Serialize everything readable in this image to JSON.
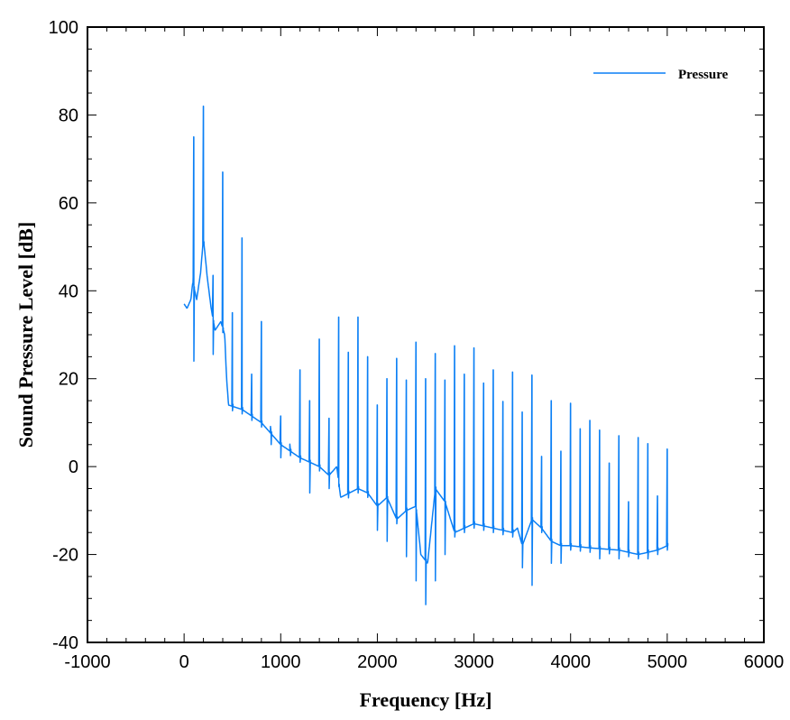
{
  "chart_data": {
    "type": "line",
    "title": "",
    "xlabel": "Frequency [Hz]",
    "ylabel": "Sound Pressure Level [dB]",
    "xlim": [
      -1000,
      6000
    ],
    "ylim": [
      -40,
      100
    ],
    "xticks": [
      -1000,
      0,
      1000,
      2000,
      3000,
      4000,
      5000,
      6000
    ],
    "yticks": [
      -40,
      -20,
      0,
      20,
      40,
      60,
      80,
      100
    ],
    "grid": false,
    "legend": {
      "position": "top-right",
      "entries": [
        "Pressure"
      ]
    },
    "color": "#0a7ff5",
    "series": [
      {
        "name": "Pressure",
        "baseline": [
          [
            0,
            37
          ],
          [
            30,
            36
          ],
          [
            70,
            38
          ],
          [
            90,
            42
          ],
          [
            130,
            38
          ],
          [
            170,
            44
          ],
          [
            200,
            52
          ],
          [
            240,
            43
          ],
          [
            280,
            36
          ],
          [
            320,
            31
          ],
          [
            380,
            33
          ],
          [
            420,
            30
          ],
          [
            440,
            20
          ],
          [
            460,
            14
          ],
          [
            600,
            13
          ],
          [
            800,
            10
          ],
          [
            1000,
            5
          ],
          [
            1200,
            2
          ],
          [
            1400,
            0
          ],
          [
            1500,
            -2
          ],
          [
            1580,
            0
          ],
          [
            1620,
            -7
          ],
          [
            1800,
            -5
          ],
          [
            1900,
            -6
          ],
          [
            2000,
            -9
          ],
          [
            2100,
            -7
          ],
          [
            2200,
            -12
          ],
          [
            2300,
            -10
          ],
          [
            2400,
            -9
          ],
          [
            2450,
            -20
          ],
          [
            2520,
            -22
          ],
          [
            2600,
            -5
          ],
          [
            2700,
            -8
          ],
          [
            2800,
            -15
          ],
          [
            3000,
            -13
          ],
          [
            3200,
            -14
          ],
          [
            3400,
            -15
          ],
          [
            3450,
            -14
          ],
          [
            3500,
            -18
          ],
          [
            3600,
            -12
          ],
          [
            3700,
            -14
          ],
          [
            3800,
            -17
          ],
          [
            3900,
            -18
          ],
          [
            4000,
            -18
          ],
          [
            4200,
            -18.5
          ],
          [
            4500,
            -19
          ],
          [
            4700,
            -20
          ],
          [
            4900,
            -19
          ],
          [
            5000,
            -18
          ]
        ],
        "spikes": [
          [
            100,
            75,
            24
          ],
          [
            200,
            82,
            null
          ],
          [
            300,
            43.5,
            25.5
          ],
          [
            400,
            67,
            null
          ],
          [
            500,
            35,
            null
          ],
          [
            600,
            52,
            null
          ],
          [
            700,
            21,
            null
          ],
          [
            800,
            33,
            null
          ],
          [
            900,
            8,
            5
          ],
          [
            1000,
            11.5,
            2
          ],
          [
            1100,
            4,
            null
          ],
          [
            1200,
            22,
            null
          ],
          [
            1300,
            15,
            -6
          ],
          [
            1400,
            29,
            null
          ],
          [
            1500,
            11,
            -5
          ],
          [
            1600,
            34,
            null
          ],
          [
            1700,
            26,
            null
          ],
          [
            1800,
            34,
            null
          ],
          [
            1900,
            25,
            null
          ],
          [
            2000,
            14,
            -14.5
          ],
          [
            2100,
            20,
            -17
          ],
          [
            2200,
            24.6,
            null
          ],
          [
            2300,
            19.7,
            -20.5
          ],
          [
            2400,
            28.3,
            -26
          ],
          [
            2500,
            20,
            -31.4
          ],
          [
            2600,
            25.7,
            -26
          ],
          [
            2700,
            19.7,
            -20
          ],
          [
            2800,
            27.5,
            null
          ],
          [
            2900,
            21,
            null
          ],
          [
            3000,
            27,
            null
          ],
          [
            3100,
            19,
            null
          ],
          [
            3200,
            22,
            null
          ],
          [
            3300,
            14.8,
            null
          ],
          [
            3400,
            21.5,
            null
          ],
          [
            3500,
            12.4,
            -23
          ],
          [
            3600,
            20.8,
            -27
          ],
          [
            3700,
            2.3,
            null
          ],
          [
            3800,
            15,
            -22
          ],
          [
            3900,
            3.5,
            -22
          ],
          [
            4000,
            14.4,
            null
          ],
          [
            4100,
            8.6,
            null
          ],
          [
            4200,
            10.5,
            null
          ],
          [
            4300,
            8.3,
            -21
          ],
          [
            4400,
            0.8,
            null
          ],
          [
            4500,
            7,
            -21
          ],
          [
            4600,
            -8,
            null
          ],
          [
            4700,
            6.6,
            -21
          ],
          [
            4800,
            5.2,
            -21
          ],
          [
            4900,
            -6.7,
            null
          ],
          [
            5000,
            4,
            null
          ]
        ]
      }
    ]
  }
}
